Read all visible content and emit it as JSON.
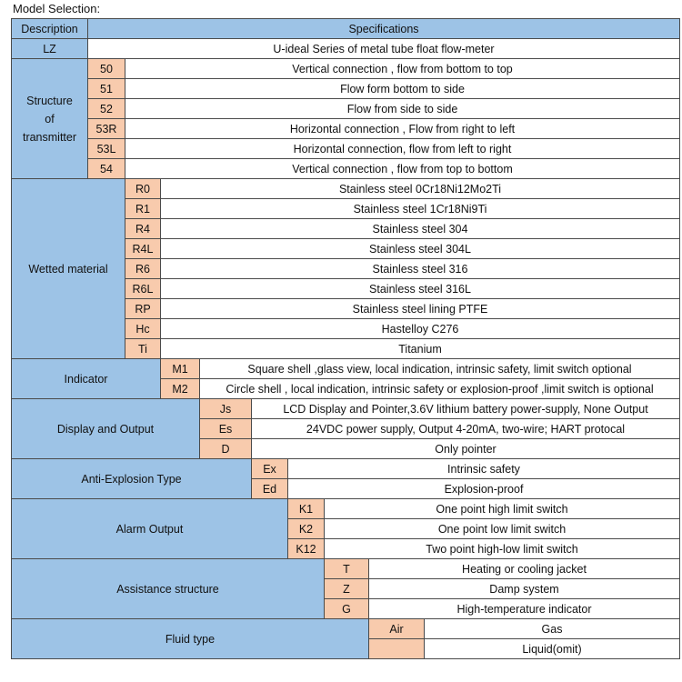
{
  "title": "Model Selection:",
  "header": {
    "description": "Description",
    "specifications": "Specifications"
  },
  "lz": {
    "code": "LZ",
    "spec": "U-ideal Series of metal tube float flow-meter"
  },
  "groups": [
    {
      "label": "Structure\nof\ntransmitter",
      "items": [
        {
          "code": "50",
          "spec": "Vertical connection , flow from bottom to top"
        },
        {
          "code": "51",
          "spec": "Flow form bottom to side"
        },
        {
          "code": "52",
          "spec": "Flow from side to side"
        },
        {
          "code": "53R",
          "spec": "Horizontal connection , Flow from right to left"
        },
        {
          "code": "53L",
          "spec": "Horizontal connection, flow from left to right"
        },
        {
          "code": "54",
          "spec": "Vertical connection , flow from top to bottom"
        }
      ]
    },
    {
      "label": "Wetted material",
      "items": [
        {
          "code": "R0",
          "spec": "Stainless steel 0Cr18Ni12Mo2Ti"
        },
        {
          "code": "R1",
          "spec": "Stainless steel 1Cr18Ni9Ti"
        },
        {
          "code": "R4",
          "spec": "Stainless steel 304"
        },
        {
          "code": "R4L",
          "spec": "Stainless steel 304L"
        },
        {
          "code": "R6",
          "spec": "Stainless steel 316"
        },
        {
          "code": "R6L",
          "spec": "Stainless steel 316L"
        },
        {
          "code": "RP",
          "spec": "Stainless steel lining PTFE"
        },
        {
          "code": "Hc",
          "spec": "Hastelloy C276"
        },
        {
          "code": "Ti",
          "spec": "Titanium"
        }
      ]
    },
    {
      "label": "Indicator",
      "items": [
        {
          "code": "M1",
          "spec": "Square shell ,glass view, local indication, intrinsic safety, limit switch optional"
        },
        {
          "code": "M2",
          "spec": "Circle shell , local indication, intrinsic safety or explosion-proof ,limit switch is optional"
        }
      ]
    },
    {
      "label": "Display and Output",
      "items": [
        {
          "code": "Js",
          "spec": "LCD Display and Pointer,3.6V lithium battery power-supply, None Output"
        },
        {
          "code": "Es",
          "spec": "24VDC power supply, Output 4-20mA, two-wire; HART protocal"
        },
        {
          "code": "D",
          "spec": "Only pointer"
        }
      ]
    },
    {
      "label": "Anti-Explosion Type",
      "items": [
        {
          "code": "Ex",
          "spec": "Intrinsic safety"
        },
        {
          "code": "Ed",
          "spec": "Explosion-proof"
        }
      ]
    },
    {
      "label": "Alarm Output",
      "items": [
        {
          "code": "K1",
          "spec": "One point high limit switch"
        },
        {
          "code": "K2",
          "spec": "One point low limit switch"
        },
        {
          "code": "K12",
          "spec": "Two point high-low limit switch"
        }
      ]
    },
    {
      "label": "Assistance structure",
      "items": [
        {
          "code": "T",
          "spec": "Heating or cooling jacket"
        },
        {
          "code": "Z",
          "spec": "Damp system"
        },
        {
          "code": "G",
          "spec": "High-temperature indicator"
        }
      ]
    },
    {
      "label": "Fluid type",
      "items": [
        {
          "code": "Air",
          "spec": "Gas"
        },
        {
          "code": "",
          "spec": "Liquid(omit)"
        }
      ]
    }
  ]
}
